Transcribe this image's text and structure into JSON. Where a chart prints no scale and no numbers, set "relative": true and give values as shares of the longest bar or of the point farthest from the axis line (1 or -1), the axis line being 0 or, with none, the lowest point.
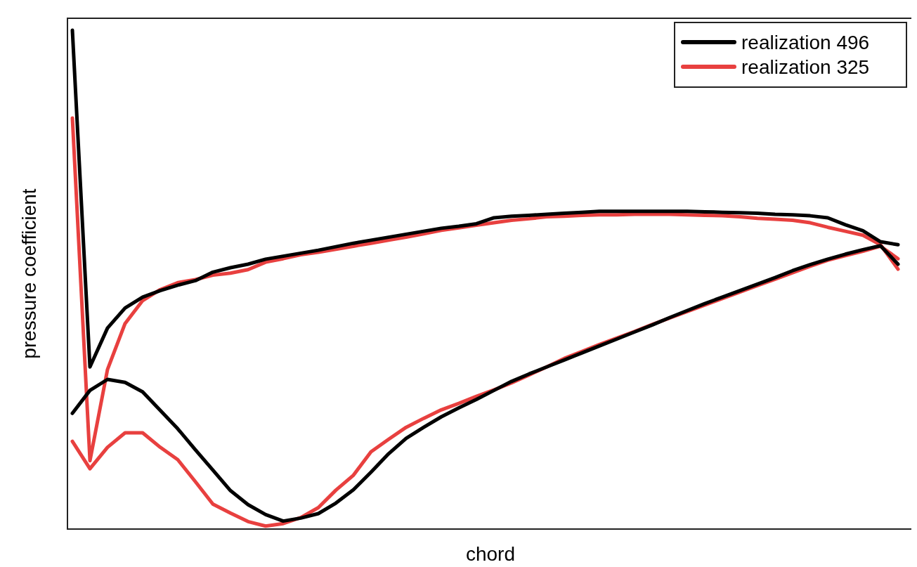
{
  "chart_data": {
    "type": "line",
    "xlabel": "chord",
    "ylabel": "pressure coefficient",
    "relative": true,
    "categories": [
      null,
      null,
      null,
      null,
      null,
      null,
      null,
      null,
      null,
      null,
      null,
      null,
      null,
      null,
      null,
      null,
      null,
      null,
      null,
      null,
      null,
      null,
      null,
      null,
      null,
      null,
      null,
      null,
      null,
      null,
      null,
      null,
      null,
      null,
      null,
      null,
      null,
      null,
      null,
      null,
      null,
      null,
      null,
      null,
      null,
      null,
      null,
      null
    ],
    "legend": "top right",
    "line_style": "solid",
    "series": [
      {
        "name": "realization 496",
        "color": "#000000",
        "values": [
          0.232,
          0.278,
          0.3,
          0.294,
          0.275,
          0.238,
          0.201,
          0.159,
          0.118,
          0.077,
          0.049,
          0.029,
          0.016,
          0.022,
          0.031,
          0.052,
          0.079,
          0.114,
          0.151,
          0.182,
          0.204,
          0.225,
          0.243,
          0.26,
          0.278,
          0.296,
          0.311,
          0.325,
          0.339,
          0.353,
          0.367,
          0.381,
          0.395,
          0.409,
          0.424,
          0.438,
          0.452,
          0.465,
          0.478,
          0.491,
          0.504,
          0.518,
          0.53,
          0.541,
          0.551,
          0.56,
          0.568,
          0.531
        ]
      },
      {
        "color": "#000000",
        "values": [
          1.0,
          0.325,
          0.403,
          0.443,
          0.465,
          0.478,
          0.489,
          0.498,
          0.515,
          0.524,
          0.531,
          0.541,
          0.547,
          0.553,
          0.559,
          0.566,
          0.573,
          0.579,
          0.585,
          0.591,
          0.597,
          0.603,
          0.607,
          0.612,
          0.624,
          0.627,
          0.629,
          0.631,
          0.633,
          0.635,
          0.637,
          0.637,
          0.637,
          0.637,
          0.637,
          0.637,
          0.636,
          0.635,
          0.634,
          0.633,
          0.631,
          0.63,
          0.628,
          0.624,
          0.61,
          0.598,
          0.576,
          0.57
        ]
      },
      {
        "name": "realization 325",
        "color": "#e8403f",
        "values": [
          0.176,
          0.121,
          0.164,
          0.193,
          0.193,
          0.164,
          0.139,
          0.095,
          0.05,
          0.032,
          0.015,
          0.006,
          0.011,
          0.023,
          0.043,
          0.078,
          0.108,
          0.155,
          0.18,
          0.204,
          0.222,
          0.239,
          0.252,
          0.266,
          0.279,
          0.293,
          0.309,
          0.325,
          0.342,
          0.356,
          0.37,
          0.383,
          0.396,
          0.41,
          0.423,
          0.436,
          0.449,
          0.462,
          0.475,
          0.488,
          0.501,
          0.514,
          0.527,
          0.539,
          0.548,
          0.557,
          0.567,
          0.542
        ]
      },
      {
        "color": "#e8403f",
        "values": [
          0.824,
          0.137,
          0.32,
          0.412,
          0.458,
          0.48,
          0.494,
          0.5,
          0.509,
          0.513,
          0.52,
          0.535,
          0.542,
          0.55,
          0.555,
          0.561,
          0.567,
          0.573,
          0.579,
          0.585,
          0.592,
          0.599,
          0.604,
          0.609,
          0.614,
          0.619,
          0.622,
          0.626,
          0.627,
          0.629,
          0.63,
          0.63,
          0.631,
          0.631,
          0.631,
          0.63,
          0.629,
          0.628,
          0.626,
          0.623,
          0.621,
          0.619,
          0.614,
          0.605,
          0.597,
          0.589,
          0.57,
          0.521
        ]
      }
    ]
  }
}
